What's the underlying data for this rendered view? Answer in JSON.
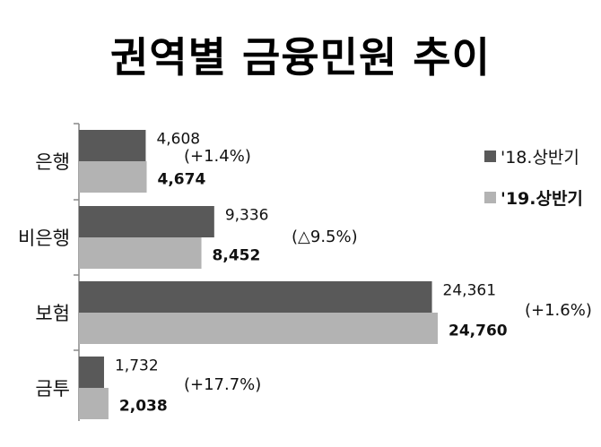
{
  "title": "권역별 금융민원 추이",
  "legend": [
    {
      "label": "'18.상반기",
      "color": "#595959",
      "bold": false
    },
    {
      "label": "'19.상반기",
      "color": "#b3b3b3",
      "bold": true
    }
  ],
  "chart_data": {
    "type": "bar",
    "orientation": "horizontal",
    "title": "권역별 금융민원 추이",
    "categories": [
      "은행",
      "비은행",
      "보험",
      "금투"
    ],
    "series": [
      {
        "name": "'18.상반기",
        "values": [
          4608,
          9336,
          24361,
          1732
        ],
        "labels": [
          "4,608",
          "9,336",
          "24,361",
          "1,732"
        ],
        "color": "#595959"
      },
      {
        "name": "'19.상반기",
        "values": [
          4674,
          8452,
          24760,
          2038
        ],
        "labels": [
          "4,674",
          "8,452",
          "24,760",
          "2,038"
        ],
        "color": "#b3b3b3"
      }
    ],
    "changes": [
      "(+1.4%)",
      "(△9.5%)",
      "(+1.6%)",
      "(+17.7%)"
    ],
    "xlim": [
      0,
      25000
    ],
    "grid": false,
    "legend_position": "right"
  }
}
